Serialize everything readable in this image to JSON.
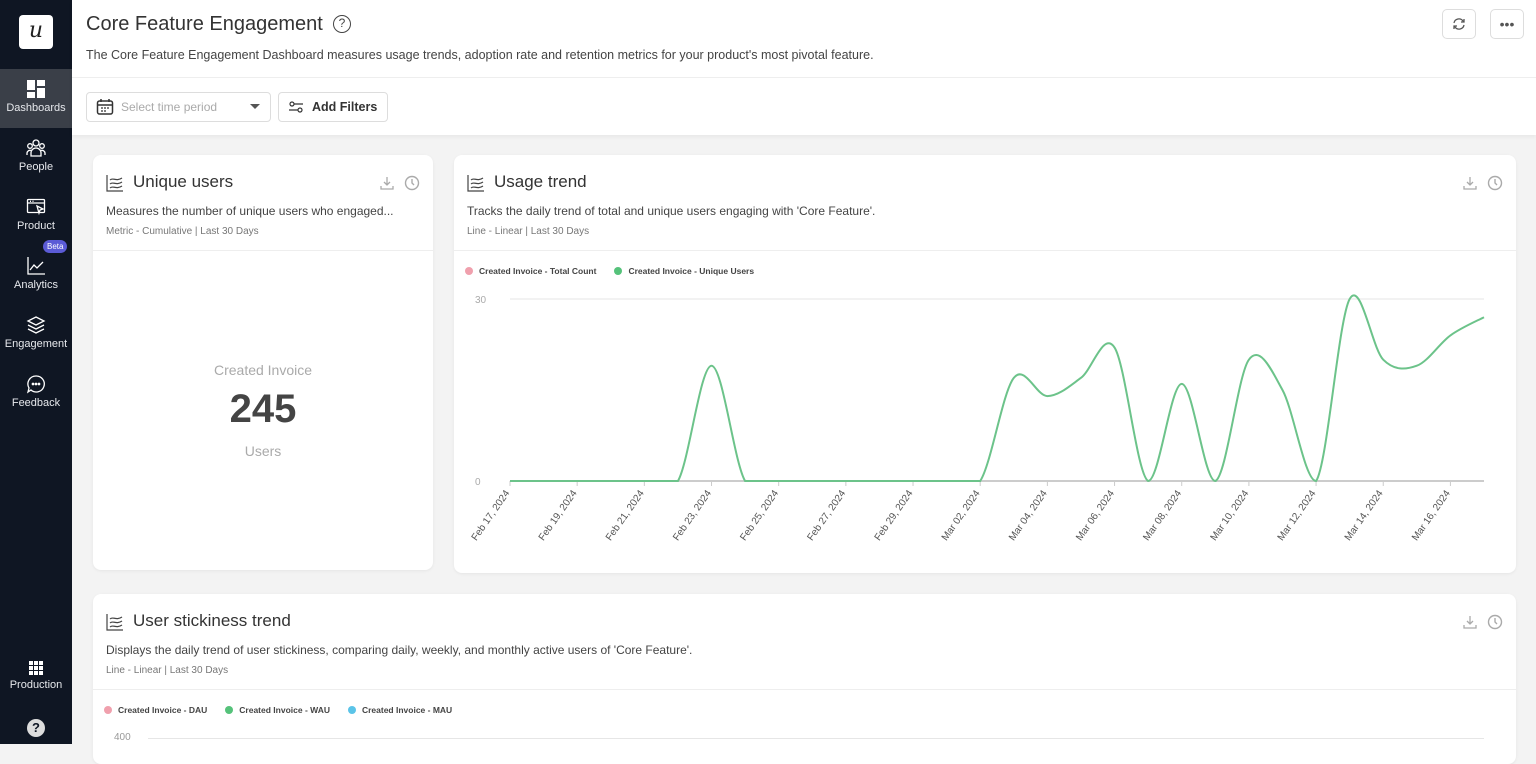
{
  "sidebar": {
    "logo": "u",
    "items": [
      {
        "label": "Dashboards",
        "icon": "dashboard-icon",
        "active": true
      },
      {
        "label": "People",
        "icon": "people-icon"
      },
      {
        "label": "Product",
        "icon": "product-icon"
      },
      {
        "label": "Analytics",
        "icon": "analytics-icon",
        "badge": "Beta"
      },
      {
        "label": "Engagement",
        "icon": "layers-icon"
      },
      {
        "label": "Feedback",
        "icon": "chat-icon"
      }
    ],
    "environment": "Production",
    "help": "?"
  },
  "header": {
    "title": "Core Feature Engagement",
    "description": "The Core Feature Engagement Dashboard measures usage trends, adoption rate and retention metrics for your product's most pivotal feature.",
    "more": "•••"
  },
  "filters": {
    "time_placeholder": "Select time period",
    "add_filters": "Add Filters"
  },
  "cards": {
    "unique": {
      "title": "Unique users",
      "description": "Measures the number of unique users who engaged...",
      "meta": "Metric - Cumulative | Last 30 Days",
      "event": "Created Invoice",
      "value": "245",
      "unit": "Users"
    },
    "usage": {
      "title": "Usage trend",
      "description": "Tracks the daily trend of total and unique users engaging with 'Core Feature'.",
      "meta": "Line - Linear | Last 30 Days"
    },
    "stickiness": {
      "title": "User stickiness trend",
      "description": "Displays the daily trend of user stickiness, comparing daily, weekly, and monthly active users of 'Core Feature'.",
      "meta": "Line - Linear | Last 30 Days",
      "legend": [
        {
          "name": "Created Invoice - DAU",
          "color": "#f0a0ad"
        },
        {
          "name": "Created Invoice - WAU",
          "color": "#55c27a"
        },
        {
          "name": "Created Invoice - MAU",
          "color": "#5bc4e8"
        }
      ],
      "y_top_tick": "400"
    }
  },
  "chart_data": {
    "type": "line",
    "legend": [
      {
        "name": "Created Invoice - Total Count",
        "color": "#f0a0ad"
      },
      {
        "name": "Created Invoice - Unique Users",
        "color": "#6cc38a"
      }
    ],
    "x": [
      "Feb 17, 2024",
      "Feb 18, 2024",
      "Feb 19, 2024",
      "Feb 20, 2024",
      "Feb 21, 2024",
      "Feb 22, 2024",
      "Feb 23, 2024",
      "Feb 24, 2024",
      "Feb 25, 2024",
      "Feb 26, 2024",
      "Feb 27, 2024",
      "Feb 28, 2024",
      "Feb 29, 2024",
      "Mar 01, 2024",
      "Mar 02, 2024",
      "Mar 03, 2024",
      "Mar 04, 2024",
      "Mar 05, 2024",
      "Mar 06, 2024",
      "Mar 07, 2024",
      "Mar 08, 2024",
      "Mar 09, 2024",
      "Mar 10, 2024",
      "Mar 11, 2024",
      "Mar 12, 2024",
      "Mar 13, 2024",
      "Mar 14, 2024",
      "Mar 15, 2024",
      "Mar 16, 2024",
      "Mar 17, 2024"
    ],
    "x_tick_labels": [
      "Feb 17, 2024",
      "Feb 19, 2024",
      "Feb 21, 2024",
      "Feb 23, 2024",
      "Feb 25, 2024",
      "Feb 27, 2024",
      "Feb 29, 2024",
      "Mar 02, 2024",
      "Mar 04, 2024",
      "Mar 06, 2024",
      "Mar 08, 2024",
      "Mar 10, 2024",
      "Mar 12, 2024",
      "Mar 14, 2024",
      "Mar 16, 2024"
    ],
    "series": [
      {
        "name": "Created Invoice - Unique Users",
        "values": [
          0,
          0,
          0,
          0,
          0,
          0,
          19,
          0,
          0,
          0,
          0,
          0,
          0,
          0,
          0,
          17,
          14,
          17,
          22,
          0,
          16,
          0,
          20,
          15,
          0,
          30,
          20,
          19,
          24,
          27
        ]
      }
    ],
    "y_ticks": [
      "0",
      "30"
    ],
    "ylim": [
      0,
      30
    ],
    "grid": true,
    "legend_position": "top-left"
  }
}
